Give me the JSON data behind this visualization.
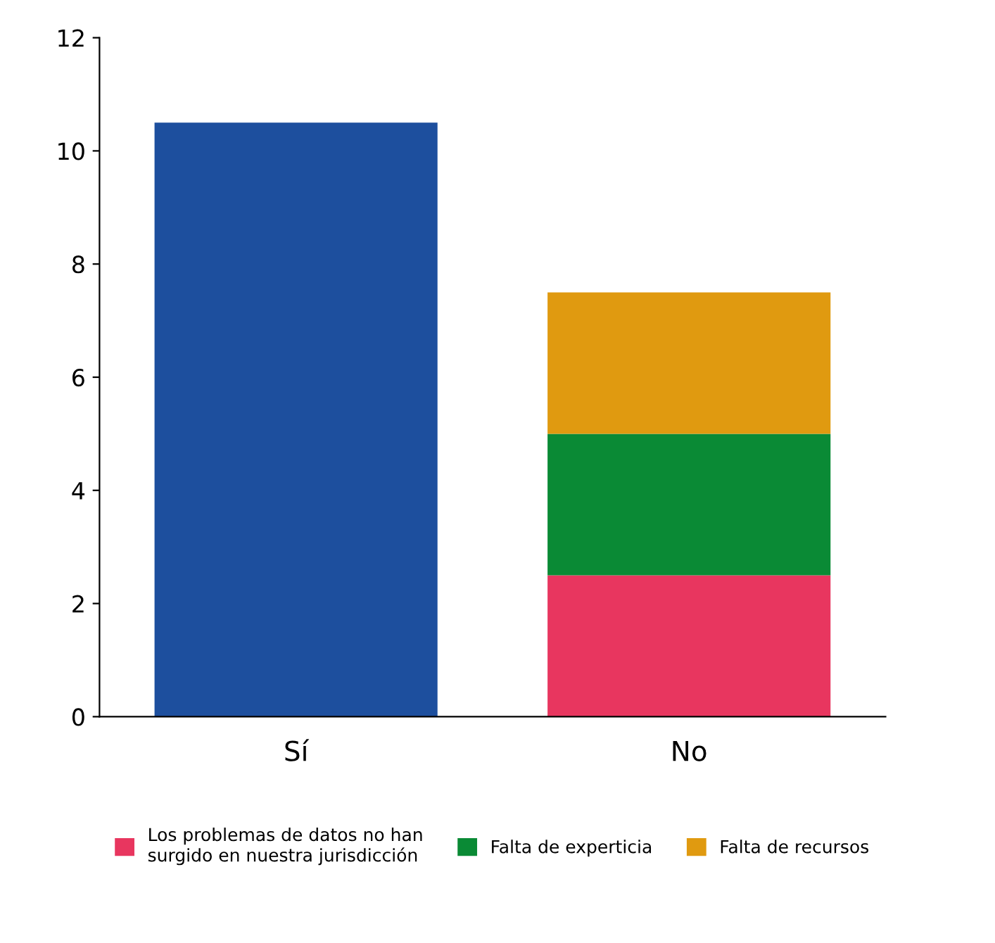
{
  "chart_data": {
    "type": "bar",
    "stacked": true,
    "categories": [
      "Sí",
      "No"
    ],
    "series": [
      {
        "color": "#1d4f9e",
        "values": [
          10.5,
          null
        ]
      },
      {
        "name": "Los problemas de datos no han\nsurgido en nuestra jurisdicción",
        "color": "#e8365f",
        "values": [
          null,
          2.5
        ]
      },
      {
        "name": "Falta de experticia",
        "color": "#0a8a35",
        "values": [
          null,
          2.5
        ]
      },
      {
        "name": "Falta de recursos",
        "color": "#e09a10",
        "values": [
          null,
          2.5
        ]
      }
    ],
    "ylim": [
      0,
      12
    ],
    "yticks": [
      0,
      2,
      4,
      6,
      8,
      10,
      12
    ],
    "grid": false,
    "legend": "bottom"
  }
}
